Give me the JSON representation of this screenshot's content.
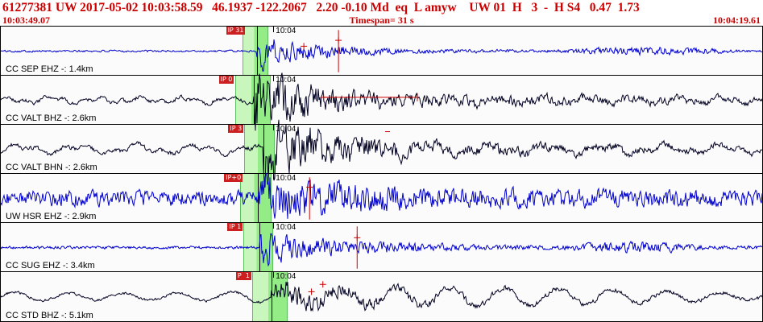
{
  "header": {
    "line1": "61277381 UW 2017-05-02 10:03:58.59   46.1937 -122.2067   2.20 -0.10 Md  eq  L amyw    UW 01  H   3  -  H S4   0.47  1.73",
    "start_time": "10:03:49.07",
    "timespan": "Timespan= 31 s",
    "end_time": "10:04:19.61"
  },
  "minute": {
    "label": "10:04",
    "x": 0.358
  },
  "colors": {
    "header_text": "#cc0000",
    "pick_band": "#93ec86",
    "pick_flag_bg": "#cc2020",
    "marker_red": "#cc0000",
    "trace_blue": "#0000cc",
    "trace_black": "#000022"
  },
  "traces": [
    {
      "id": "sep-ehz",
      "station": "CC SEP EHZ -: 1.4km",
      "pick_label": "IP 31",
      "color": "#0000cc",
      "band": [
        0.317,
        0.3515
      ],
      "pick_x": 0.3365,
      "markers": [
        {
          "t": "cross",
          "x": 0.398,
          "y": 0.4
        },
        {
          "t": "vline",
          "x": 0.4435
        },
        {
          "t": "cross",
          "x": 0.4435,
          "y": 0.28
        }
      ],
      "wave": {
        "seed": 101,
        "base": 1.1,
        "burst": 15,
        "decay": 24,
        "pick": 0.3365,
        "extra": [
          [
            0.355,
            0.52,
            1.5
          ],
          [
            0.73,
            0.975,
            3.2
          ]
        ]
      }
    },
    {
      "id": "valt-bhz",
      "station": "CC VALT BHZ -: 2.6km",
      "pick_label": "IP 0",
      "color": "#000022",
      "band": [
        0.3075,
        0.354
      ],
      "pick_x": 0.332,
      "markers": [
        {
          "t": "cross",
          "x": 0.424,
          "y": 0.44
        },
        {
          "t": "hline",
          "x1": 0.424,
          "x2": 0.547,
          "y": 0.44
        },
        {
          "t": "tick",
          "x": 0.547,
          "y": 0.44
        }
      ],
      "wave": {
        "seed": 202,
        "base": 2.0,
        "wander": 4.5,
        "wcyc": 17,
        "burst": 26,
        "decay": 17,
        "pick": 0.332,
        "extra": [
          [
            0.45,
            0.99,
            1.2
          ]
        ]
      }
    },
    {
      "id": "valt-bhn",
      "station": "CC VALT BHN -: 2.6km",
      "pick_label": "IP 3",
      "color": "#000022",
      "band": [
        0.32,
        0.36
      ],
      "pick_x": 0.3445,
      "markers": [
        {
          "t": "dash",
          "x": 0.508,
          "y": 0.14
        }
      ],
      "wave": {
        "seed": 303,
        "base": 2.2,
        "wander": 7,
        "wcyc": 13,
        "burst": 28,
        "decay": 15,
        "pick": 0.3445
      }
    },
    {
      "id": "hsr-ehz",
      "station": "UW HSR EHZ -: 2.9km",
      "pick_label": "IP+0",
      "color": "#0000cc",
      "band": [
        0.3145,
        0.3555
      ],
      "pick_x": 0.338,
      "markers": [
        {
          "t": "vline",
          "x": 0.4055
        },
        {
          "t": "cross",
          "x": 0.4055,
          "y": 0.27
        }
      ],
      "wave": {
        "seed": 404,
        "base": 8.0,
        "burst": 17,
        "decay": 13,
        "pick": 0.338
      }
    },
    {
      "id": "sug-ehz",
      "station": "CC SUG EHZ -: 3.4km",
      "pick_label": "IP 1",
      "color": "#0000cc",
      "band": [
        0.319,
        0.358
      ],
      "pick_x": 0.34,
      "markers": [
        {
          "t": "vline",
          "x": 0.468
        },
        {
          "t": "cross",
          "x": 0.468,
          "y": 0.3
        }
      ],
      "wave": {
        "seed": 505,
        "base": 1.5,
        "burst": 14,
        "decay": 15,
        "pick": 0.34,
        "extra": [
          [
            0.42,
            0.6,
            1.2
          ],
          [
            0.74,
            0.935,
            3.8
          ]
        ]
      }
    },
    {
      "id": "std-bhz",
      "station": "CC STD BHZ -: 5.1km",
      "pick_label": "P  1",
      "color": "#000022",
      "band": [
        0.33,
        0.3765
      ],
      "pick_x": 0.3555,
      "markers": [
        {
          "t": "cross",
          "x": 0.408,
          "y": 0.4
        },
        {
          "t": "cross",
          "x": 0.423,
          "y": 0.25
        }
      ],
      "wave": {
        "seed": 606,
        "base": 1.4,
        "sine": 10.5,
        "scyc": 14,
        "burst": 11,
        "decay": 12,
        "pick": 0.3555
      }
    }
  ]
}
